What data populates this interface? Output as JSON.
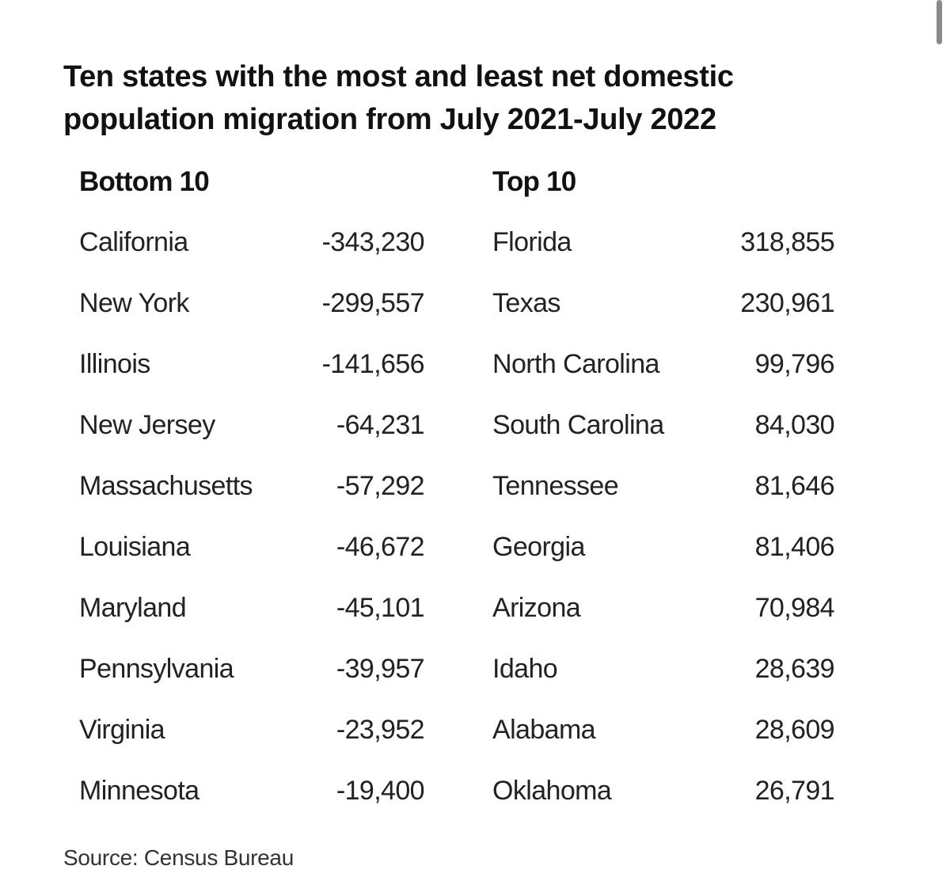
{
  "chart_data": {
    "type": "table",
    "title_line1": "Ten states with the most and least net domestic",
    "title_line2": "population migration from July 2021-July 2022",
    "bottom": {
      "header": "Bottom 10",
      "rows": [
        {
          "state": "California",
          "value": "-343,230"
        },
        {
          "state": "New York",
          "value": "-299,557"
        },
        {
          "state": "Illinois",
          "value": "-141,656"
        },
        {
          "state": "New Jersey",
          "value": "-64,231"
        },
        {
          "state": "Massachusetts",
          "value": "-57,292"
        },
        {
          "state": "Louisiana",
          "value": "-46,672"
        },
        {
          "state": "Maryland",
          "value": "-45,101"
        },
        {
          "state": "Pennsylvania",
          "value": "-39,957"
        },
        {
          "state": "Virginia",
          "value": "-23,952"
        },
        {
          "state": "Minnesota",
          "value": "-19,400"
        }
      ]
    },
    "top": {
      "header": "Top 10",
      "rows": [
        {
          "state": "Florida",
          "value": "318,855"
        },
        {
          "state": "Texas",
          "value": "230,961"
        },
        {
          "state": "North Carolina",
          "value": "99,796"
        },
        {
          "state": "South Carolina",
          "value": "84,030"
        },
        {
          "state": "Tennessee",
          "value": "81,646"
        },
        {
          "state": "Georgia",
          "value": "81,406"
        },
        {
          "state": "Arizona",
          "value": "70,984"
        },
        {
          "state": "Idaho",
          "value": "28,639"
        },
        {
          "state": "Alabama",
          "value": "28,609"
        },
        {
          "state": "Oklahoma",
          "value": "26,791"
        }
      ]
    },
    "source": "Source: Census Bureau"
  }
}
